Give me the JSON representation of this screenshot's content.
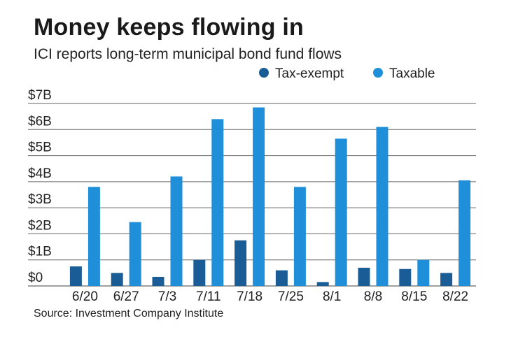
{
  "title": "Money keeps flowing in",
  "subtitle": "ICI reports long-term municipal bond fund flows",
  "source": "Source: Investment Company Institute",
  "colors": {
    "tax_exempt": "#1a5d96",
    "taxable": "#1e8fd8",
    "grid": "#666666"
  },
  "chart_data": {
    "type": "bar",
    "title": "Money keeps flowing in",
    "xlabel": "",
    "ylabel": "",
    "categories": [
      "6/20",
      "6/27",
      "7/3",
      "7/11",
      "7/18",
      "7/25",
      "8/1",
      "8/8",
      "8/15",
      "8/22"
    ],
    "series": [
      {
        "name": "Tax-exempt",
        "values": [
          0.75,
          0.5,
          0.35,
          1.0,
          1.75,
          0.6,
          0.15,
          0.7,
          0.65,
          0.5
        ]
      },
      {
        "name": "Taxable",
        "values": [
          3.8,
          2.45,
          4.2,
          6.4,
          6.85,
          3.8,
          5.65,
          6.1,
          1.0,
          4.05
        ]
      }
    ],
    "yticks": [
      "$0",
      "$1B",
      "$2B",
      "$3B",
      "$4B",
      "$5B",
      "$6B",
      "$7B"
    ],
    "ylim": [
      0,
      7
    ],
    "legend": "top-right",
    "grid": true
  }
}
